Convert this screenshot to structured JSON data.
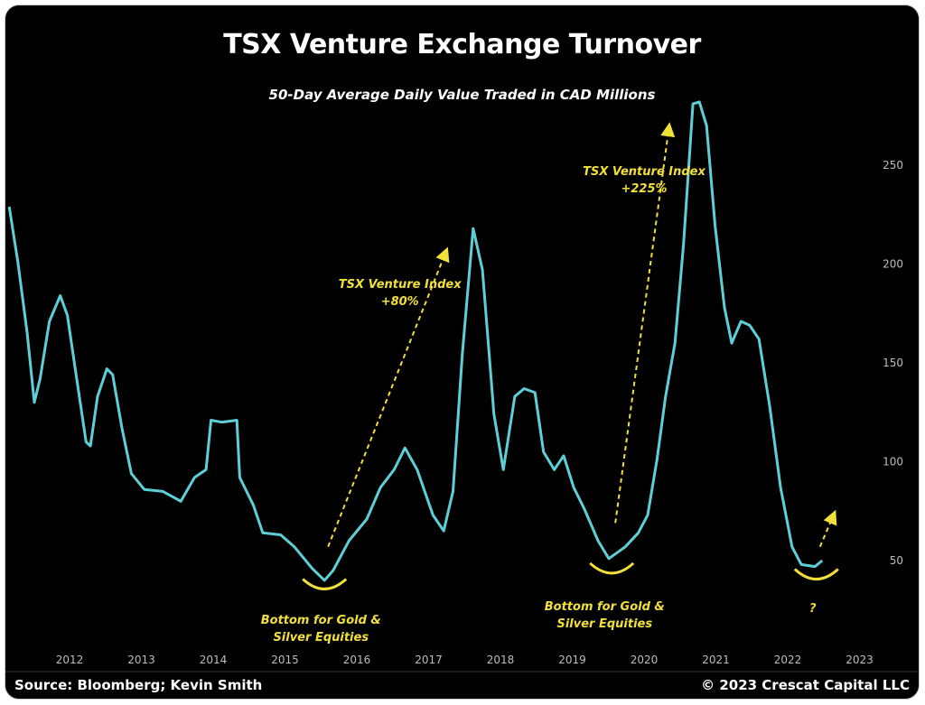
{
  "chart_data": {
    "type": "line",
    "title": "TSX Venture Exchange Turnover",
    "subtitle": "50-Day Average Daily Value Traded in CAD Millions",
    "xlabel": "",
    "ylabel": "",
    "xlim": [
      2011.1,
      2023.2
    ],
    "ylim": [
      20,
      290
    ],
    "x_ticks": [
      "2012",
      "2013",
      "2014",
      "2015",
      "2016",
      "2017",
      "2018",
      "2019",
      "2020",
      "2021",
      "2022",
      "2023"
    ],
    "y_ticks": [
      50,
      100,
      150,
      200,
      250
    ],
    "grid": false,
    "line_color": "#5ecfd6",
    "annotation_color": "#f2e03a",
    "series": [
      {
        "name": "TSX Venture Exchange 50-Day Avg Daily Value Traded",
        "x": [
          2011.16,
          2011.28,
          2011.41,
          2011.51,
          2011.59,
          2011.72,
          2011.87,
          2011.97,
          2012.1,
          2012.23,
          2012.29,
          2012.39,
          2012.52,
          2012.6,
          2012.73,
          2012.86,
          2013.04,
          2013.3,
          2013.55,
          2013.74,
          2013.9,
          2013.97,
          2014.12,
          2014.33,
          2014.37,
          2014.56,
          2014.69,
          2014.94,
          2015.13,
          2015.38,
          2015.55,
          2015.67,
          2015.89,
          2016.14,
          2016.33,
          2016.52,
          2016.67,
          2016.84,
          2017.06,
          2017.21,
          2017.34,
          2017.47,
          2017.62,
          2017.75,
          2017.91,
          2018.04,
          2018.2,
          2018.33,
          2018.48,
          2018.6,
          2018.75,
          2018.88,
          2019.02,
          2019.17,
          2019.36,
          2019.51,
          2019.74,
          2019.92,
          2020.05,
          2020.18,
          2020.3,
          2020.43,
          2020.55,
          2020.68,
          2020.77,
          2020.87,
          2020.99,
          2021.12,
          2021.22,
          2021.35,
          2021.47,
          2021.6,
          2021.75,
          2021.9,
          2022.06,
          2022.19,
          2022.38,
          2022.48
        ],
        "values": [
          229,
          201,
          165,
          130,
          142,
          171,
          184,
          174,
          142,
          110,
          108,
          133,
          147,
          144,
          117,
          94,
          86,
          85,
          80,
          92,
          96,
          121,
          120,
          121,
          92,
          78,
          64,
          63,
          57,
          46,
          40,
          45,
          60,
          71,
          87,
          96,
          107,
          96,
          73,
          65,
          85,
          155,
          218,
          197,
          124,
          96,
          133,
          137,
          135,
          105,
          96,
          103,
          87,
          76,
          60,
          51,
          57,
          64,
          73,
          101,
          133,
          160,
          210,
          281,
          282,
          270,
          219,
          178,
          160,
          171,
          169,
          162,
          128,
          87,
          57,
          48,
          47,
          50
        ]
      }
    ],
    "annotations": [
      {
        "lines": [
          "TSX Venture Index",
          "+80%"
        ],
        "x": 2016.6,
        "y": 188
      },
      {
        "lines": [
          "TSX Venture Index",
          "+225%"
        ],
        "x": 2020.0,
        "y": 245
      },
      {
        "lines": [
          "Bottom for Gold &",
          "Silver Equities"
        ],
        "x": 2015.5,
        "y": 18
      },
      {
        "lines": [
          "Bottom for Gold &",
          "Silver Equities"
        ],
        "x": 2019.45,
        "y": 25
      },
      {
        "lines": [
          "?"
        ],
        "x": 2022.35,
        "y": 24
      }
    ],
    "arrows": [
      {
        "from": [
          2015.6,
          57
        ],
        "to": [
          2017.25,
          207
        ]
      },
      {
        "from": [
          2019.6,
          69
        ],
        "to": [
          2020.35,
          270
        ]
      },
      {
        "from": [
          2022.45,
          57
        ],
        "to": [
          2022.65,
          74
        ]
      }
    ],
    "bottom_markers": [
      {
        "x": 2015.55,
        "y": 37
      },
      {
        "x": 2019.55,
        "y": 45
      },
      {
        "x": 2022.4,
        "y": 42
      }
    ]
  },
  "footer": {
    "source": "Source: Bloomberg; Kevin Smith",
    "copyright": "© 2023 Crescat Capital LLC"
  }
}
